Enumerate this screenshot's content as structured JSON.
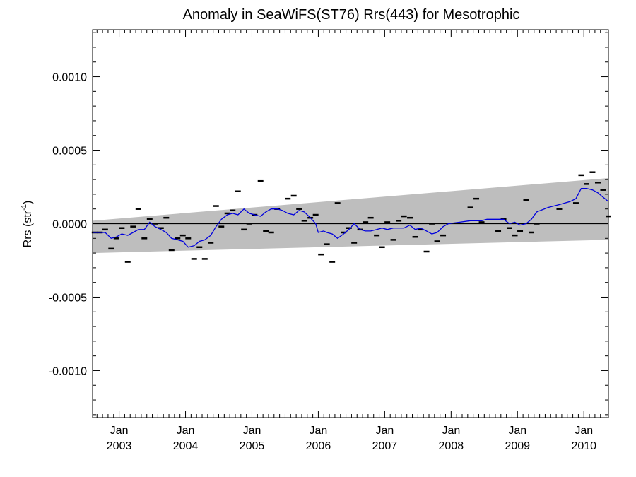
{
  "chart_data": {
    "type": "scatter",
    "title": "Anomaly in SeaWiFS(ST76) Rrs(443) for Mesotrophic",
    "ylabel_main": "Rrs (str",
    "ylabel_sup": "-1",
    "ylabel_close": ")",
    "xlabel": "",
    "xlim": [
      2002.6,
      2010.37
    ],
    "ylim": [
      -0.00132,
      0.00132
    ],
    "y_ticks": [
      {
        "value": 0.001,
        "label": "0.0010"
      },
      {
        "value": 0.0005,
        "label": "0.0005"
      },
      {
        "value": 0.0,
        "label": "0.0000"
      },
      {
        "value": -0.0005,
        "label": "-0.0005"
      },
      {
        "value": -0.001,
        "label": "-0.0010"
      }
    ],
    "x_ticks": [
      {
        "value": 2003.0,
        "month": "Jan",
        "year": "2003"
      },
      {
        "value": 2004.0,
        "month": "Jan",
        "year": "2004"
      },
      {
        "value": 2005.0,
        "month": "Jan",
        "year": "2005"
      },
      {
        "value": 2006.0,
        "month": "Jan",
        "year": "2006"
      },
      {
        "value": 2007.0,
        "month": "Jan",
        "year": "2007"
      },
      {
        "value": 2008.0,
        "month": "Jan",
        "year": "2008"
      },
      {
        "value": 2009.0,
        "month": "Jan",
        "year": "2009"
      },
      {
        "value": 2010.0,
        "month": "Jan",
        "year": "2010"
      }
    ],
    "zero_line": 0.0,
    "band": {
      "upper": [
        [
          2002.6,
          2e-05
        ],
        [
          2010.37,
          0.00031
        ]
      ],
      "lower": [
        [
          2002.6,
          -0.0002
        ],
        [
          2010.37,
          -0.00011
        ]
      ]
    },
    "series": [
      {
        "kind": "points",
        "color": "#000000",
        "points": [
          [
            2002.63,
            -6e-05
          ],
          [
            2002.71,
            -6e-05
          ],
          [
            2002.79,
            -4e-05
          ],
          [
            2002.88,
            -0.00017
          ],
          [
            2002.96,
            -0.0001
          ],
          [
            2003.04,
            -3e-05
          ],
          [
            2003.13,
            -0.00026
          ],
          [
            2003.21,
            -2e-05
          ],
          [
            2003.29,
            0.0001
          ],
          [
            2003.38,
            -0.0001
          ],
          [
            2003.46,
            3e-05
          ],
          [
            2003.54,
            0.0
          ],
          [
            2003.63,
            -3e-05
          ],
          [
            2003.71,
            4e-05
          ],
          [
            2003.79,
            -0.00018
          ],
          [
            2003.88,
            -0.0001
          ],
          [
            2003.96,
            -8e-05
          ],
          [
            2004.04,
            -0.0001
          ],
          [
            2004.13,
            -0.00024
          ],
          [
            2004.21,
            -0.00016
          ],
          [
            2004.29,
            -0.00024
          ],
          [
            2004.38,
            -0.00013
          ],
          [
            2004.46,
            0.00012
          ],
          [
            2004.54,
            -2e-05
          ],
          [
            2004.63,
            7e-05
          ],
          [
            2004.71,
            9e-05
          ],
          [
            2004.79,
            0.00022
          ],
          [
            2004.88,
            -4e-05
          ],
          [
            2004.96,
            0.0
          ],
          [
            2005.04,
            6e-05
          ],
          [
            2005.13,
            0.00029
          ],
          [
            2005.21,
            -5e-05
          ],
          [
            2005.29,
            -6e-05
          ],
          [
            2005.38,
            0.0001
          ],
          [
            2005.54,
            0.00017
          ],
          [
            2005.63,
            0.00019
          ],
          [
            2005.71,
            0.0001
          ],
          [
            2005.79,
            2e-05
          ],
          [
            2005.88,
            4e-05
          ],
          [
            2005.96,
            6e-05
          ],
          [
            2006.04,
            -0.00021
          ],
          [
            2006.13,
            -0.00014
          ],
          [
            2006.21,
            -0.00026
          ],
          [
            2006.29,
            0.00014
          ],
          [
            2006.38,
            -6e-05
          ],
          [
            2006.46,
            -3e-05
          ],
          [
            2006.54,
            -0.00013
          ],
          [
            2006.63,
            -4e-05
          ],
          [
            2006.71,
            1e-05
          ],
          [
            2006.79,
            4e-05
          ],
          [
            2006.88,
            -8e-05
          ],
          [
            2006.96,
            -0.00016
          ],
          [
            2007.04,
            1e-05
          ],
          [
            2007.13,
            -0.00011
          ],
          [
            2007.21,
            2e-05
          ],
          [
            2007.29,
            5e-05
          ],
          [
            2007.38,
            4e-05
          ],
          [
            2007.46,
            -9e-05
          ],
          [
            2007.54,
            -4e-05
          ],
          [
            2007.63,
            -0.00019
          ],
          [
            2007.71,
            0.0
          ],
          [
            2007.79,
            -0.00012
          ],
          [
            2007.88,
            -8e-05
          ],
          [
            2008.29,
            0.00011
          ],
          [
            2008.38,
            0.00017
          ],
          [
            2008.46,
            1e-05
          ],
          [
            2008.71,
            -5e-05
          ],
          [
            2008.79,
            3e-05
          ],
          [
            2008.88,
            -3e-05
          ],
          [
            2008.96,
            -8e-05
          ],
          [
            2009.04,
            -5e-05
          ],
          [
            2009.13,
            0.00016
          ],
          [
            2009.21,
            -6e-05
          ],
          [
            2009.29,
            0.0
          ],
          [
            2009.63,
            0.0001
          ],
          [
            2009.88,
            0.00014
          ],
          [
            2009.96,
            0.00033
          ],
          [
            2010.04,
            0.00027
          ],
          [
            2010.13,
            0.00035
          ],
          [
            2010.21,
            0.00028
          ],
          [
            2010.29,
            0.00023
          ],
          [
            2010.37,
            5e-05
          ]
        ]
      },
      {
        "kind": "line",
        "color": "#0000dd",
        "points": [
          [
            2002.6,
            -6e-05
          ],
          [
            2002.79,
            -6e-05
          ],
          [
            2002.88,
            -0.0001
          ],
          [
            2002.96,
            -9e-05
          ],
          [
            2003.04,
            -7e-05
          ],
          [
            2003.13,
            -8e-05
          ],
          [
            2003.21,
            -6e-05
          ],
          [
            2003.29,
            -4e-05
          ],
          [
            2003.38,
            -4e-05
          ],
          [
            2003.46,
            1e-05
          ],
          [
            2003.54,
            -2e-05
          ],
          [
            2003.63,
            -4e-05
          ],
          [
            2003.71,
            -6e-05
          ],
          [
            2003.79,
            -0.0001
          ],
          [
            2003.88,
            -0.00011
          ],
          [
            2003.96,
            -0.00012
          ],
          [
            2004.04,
            -0.00016
          ],
          [
            2004.13,
            -0.00015
          ],
          [
            2004.21,
            -0.00012
          ],
          [
            2004.29,
            -0.00011
          ],
          [
            2004.38,
            -8e-05
          ],
          [
            2004.46,
            -2e-05
          ],
          [
            2004.54,
            3e-05
          ],
          [
            2004.63,
            6e-05
          ],
          [
            2004.71,
            7e-05
          ],
          [
            2004.79,
            6e-05
          ],
          [
            2004.88,
            0.0001
          ],
          [
            2004.96,
            7e-05
          ],
          [
            2005.04,
            6e-05
          ],
          [
            2005.13,
            5e-05
          ],
          [
            2005.21,
            8e-05
          ],
          [
            2005.29,
            0.0001
          ],
          [
            2005.38,
            0.0001
          ],
          [
            2005.46,
            9e-05
          ],
          [
            2005.54,
            7e-05
          ],
          [
            2005.63,
            6e-05
          ],
          [
            2005.71,
            9e-05
          ],
          [
            2005.79,
            8e-05
          ],
          [
            2005.88,
            4e-05
          ],
          [
            2005.96,
            0.0
          ],
          [
            2006.0,
            -6e-05
          ],
          [
            2006.08,
            -5e-05
          ],
          [
            2006.13,
            -6e-05
          ],
          [
            2006.21,
            -7e-05
          ],
          [
            2006.29,
            -0.0001
          ],
          [
            2006.38,
            -7e-05
          ],
          [
            2006.46,
            -4e-05
          ],
          [
            2006.54,
            0.0
          ],
          [
            2006.63,
            -4e-05
          ],
          [
            2006.71,
            -5e-05
          ],
          [
            2006.79,
            -5e-05
          ],
          [
            2006.88,
            -4e-05
          ],
          [
            2006.96,
            -3e-05
          ],
          [
            2007.04,
            -4e-05
          ],
          [
            2007.13,
            -3e-05
          ],
          [
            2007.21,
            -3e-05
          ],
          [
            2007.29,
            -3e-05
          ],
          [
            2007.38,
            -1e-05
          ],
          [
            2007.46,
            -4e-05
          ],
          [
            2007.54,
            -3e-05
          ],
          [
            2007.63,
            -5e-05
          ],
          [
            2007.71,
            -7e-05
          ],
          [
            2007.79,
            -6e-05
          ],
          [
            2007.88,
            -2e-05
          ],
          [
            2007.96,
            0.0
          ],
          [
            2008.13,
            1e-05
          ],
          [
            2008.29,
            2e-05
          ],
          [
            2008.46,
            2e-05
          ],
          [
            2008.54,
            3e-05
          ],
          [
            2008.71,
            3e-05
          ],
          [
            2008.79,
            3e-05
          ],
          [
            2008.88,
            0.0
          ],
          [
            2008.96,
            1e-05
          ],
          [
            2009.04,
            -1e-05
          ],
          [
            2009.13,
            0.0
          ],
          [
            2009.21,
            3e-05
          ],
          [
            2009.29,
            8e-05
          ],
          [
            2009.46,
            0.00011
          ],
          [
            2009.63,
            0.00013
          ],
          [
            2009.79,
            0.00015
          ],
          [
            2009.88,
            0.00017
          ],
          [
            2009.96,
            0.00024
          ],
          [
            2010.04,
            0.00024
          ],
          [
            2010.13,
            0.00023
          ],
          [
            2010.21,
            0.00021
          ],
          [
            2010.29,
            0.00018
          ],
          [
            2010.37,
            0.00015
          ]
        ]
      }
    ]
  }
}
